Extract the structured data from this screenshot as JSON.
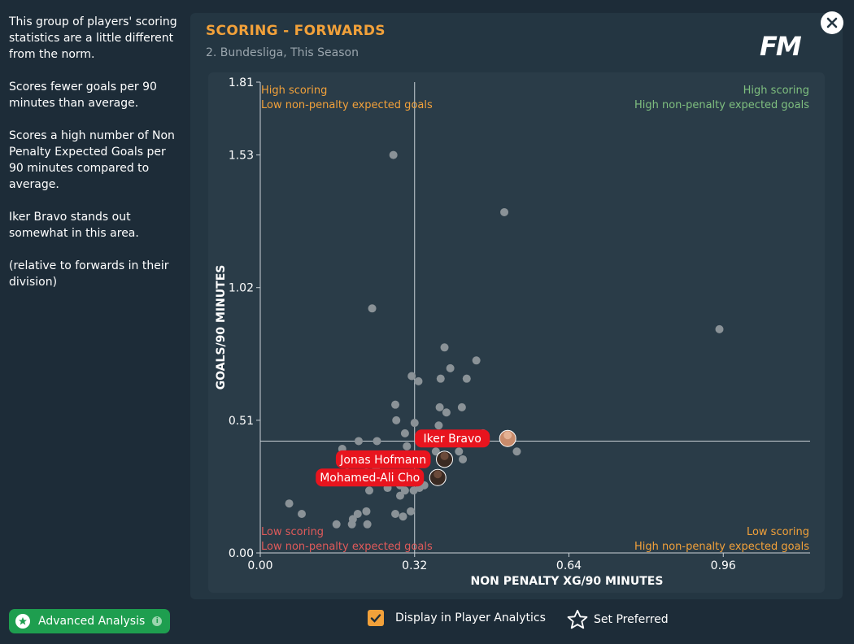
{
  "sidebar": {
    "paragraphs": [
      "This group of players' scoring statistics are a little different from the norm.",
      "Scores fewer goals per 90 minutes than average.",
      "Scores a high number of Non Penalty Expected Goals per 90 minutes compared to average.",
      "Iker Bravo stands out somewhat in this area.",
      "(relative to forwards in their division)"
    ],
    "advanced_button": "Advanced Analysis"
  },
  "panel": {
    "title": "SCORING - FORWARDS",
    "subtitle": "2. Bundesliga, This Season",
    "logo": "FM"
  },
  "footer": {
    "display_label": "Display in Player Analytics",
    "preferred_label": "Set Preferred"
  },
  "colors": {
    "accent": "#f2a13a",
    "green": "#7fbf7f",
    "red": "#e05a5a",
    "highlight": "#e8141e"
  },
  "chart_data": {
    "type": "scatter",
    "xlabel": "NON PENALTY XG/90 MINUTES",
    "ylabel": "GOALS/90 MINUTES",
    "xticks": [
      "0.00",
      "0.32",
      "0.64",
      "0.96"
    ],
    "yticks": [
      "0.00",
      "0.51",
      "1.02",
      "1.53",
      "1.81"
    ],
    "xlim": [
      0,
      1.14
    ],
    "ylim": [
      0,
      1.81
    ],
    "x_avg": 0.32,
    "y_avg": 0.43,
    "quadrants": {
      "top_left": [
        "High scoring",
        "Low non-penalty expected goals"
      ],
      "top_right": [
        "High scoring",
        "High non-penalty expected goals"
      ],
      "bottom_left": [
        "Low scoring",
        "Low non-penalty expected goals"
      ],
      "bottom_right": [
        "Low scoring",
        "High non-penalty expected goals"
      ]
    },
    "points": [
      [
        0.276,
        1.53
      ],
      [
        0.506,
        1.31
      ],
      [
        0.232,
        0.94
      ],
      [
        0.952,
        0.86
      ],
      [
        0.382,
        0.79
      ],
      [
        0.448,
        0.74
      ],
      [
        0.394,
        0.71
      ],
      [
        0.314,
        0.68
      ],
      [
        0.374,
        0.67
      ],
      [
        0.428,
        0.67
      ],
      [
        0.328,
        0.66
      ],
      [
        0.28,
        0.57
      ],
      [
        0.372,
        0.56
      ],
      [
        0.418,
        0.56
      ],
      [
        0.386,
        0.54
      ],
      [
        0.282,
        0.51
      ],
      [
        0.32,
        0.5
      ],
      [
        0.37,
        0.49
      ],
      [
        0.3,
        0.46
      ],
      [
        0.462,
        0.46
      ],
      [
        0.204,
        0.43
      ],
      [
        0.242,
        0.43
      ],
      [
        0.17,
        0.4
      ],
      [
        0.304,
        0.41
      ],
      [
        0.364,
        0.39
      ],
      [
        0.412,
        0.39
      ],
      [
        0.532,
        0.39
      ],
      [
        0.17,
        0.35
      ],
      [
        0.24,
        0.33
      ],
      [
        0.42,
        0.36
      ],
      [
        0.15,
        0.3
      ],
      [
        0.18,
        0.31
      ],
      [
        0.22,
        0.31
      ],
      [
        0.244,
        0.29
      ],
      [
        0.27,
        0.27
      ],
      [
        0.31,
        0.28
      ],
      [
        0.29,
        0.26
      ],
      [
        0.34,
        0.26
      ],
      [
        0.33,
        0.25
      ],
      [
        0.3,
        0.24
      ],
      [
        0.318,
        0.24
      ],
      [
        0.226,
        0.24
      ],
      [
        0.264,
        0.25
      ],
      [
        0.29,
        0.22
      ],
      [
        0.06,
        0.19
      ],
      [
        0.22,
        0.16
      ],
      [
        0.202,
        0.15
      ],
      [
        0.28,
        0.15
      ],
      [
        0.312,
        0.16
      ],
      [
        0.296,
        0.14
      ],
      [
        0.086,
        0.15
      ],
      [
        0.192,
        0.13
      ],
      [
        0.222,
        0.11
      ],
      [
        0.19,
        0.11
      ],
      [
        0.158,
        0.11
      ]
    ],
    "highlighted": [
      {
        "name": "Iker Bravo",
        "x": 0.513,
        "y": 0.44
      },
      {
        "name": "Jonas Hofmann",
        "x": 0.382,
        "y": 0.36
      },
      {
        "name": "Mohamed-Ali Cho",
        "x": 0.368,
        "y": 0.29
      }
    ]
  }
}
